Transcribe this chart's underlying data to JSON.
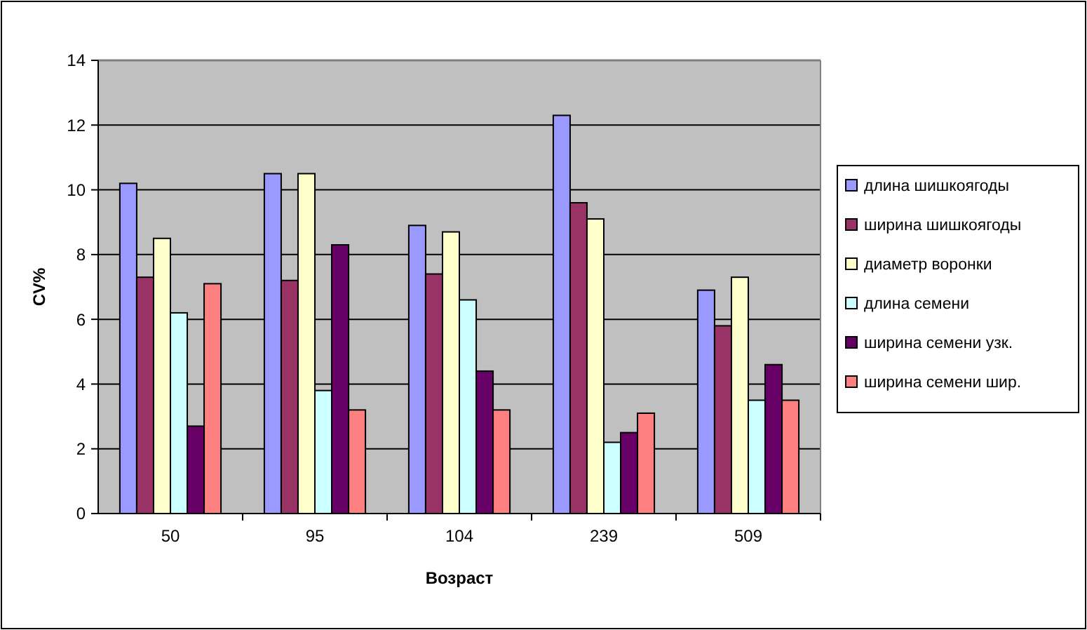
{
  "chart_data": {
    "type": "bar",
    "xlabel": "Возраст",
    "ylabel": "CV%",
    "categories": [
      "50",
      "95",
      "104",
      "239",
      "509"
    ],
    "series": [
      {
        "name": "длина шишкоягоды",
        "color": "#9999ff",
        "values": [
          10.2,
          10.5,
          8.9,
          12.3,
          6.9
        ]
      },
      {
        "name": "ширина шишкоягоды",
        "color": "#993366",
        "values": [
          7.3,
          7.2,
          7.4,
          9.6,
          5.8
        ]
      },
      {
        "name": "диаметр воронки",
        "color": "#ffffcc",
        "values": [
          8.5,
          10.5,
          8.7,
          9.1,
          7.3
        ]
      },
      {
        "name": "длина семени",
        "color": "#ccffff",
        "values": [
          6.2,
          3.8,
          6.6,
          2.2,
          3.5
        ]
      },
      {
        "name": "ширина семени узк.",
        "color": "#660066",
        "values": [
          2.7,
          8.3,
          4.4,
          2.5,
          4.6
        ]
      },
      {
        "name": "ширина семени шир.",
        "color": "#ff8080",
        "values": [
          7.1,
          3.2,
          3.2,
          3.1,
          3.5
        ]
      }
    ],
    "ylim": [
      0,
      14
    ],
    "yticks": [
      0,
      2,
      4,
      6,
      8,
      10,
      12,
      14
    ],
    "grid": "y",
    "legend": "right"
  }
}
